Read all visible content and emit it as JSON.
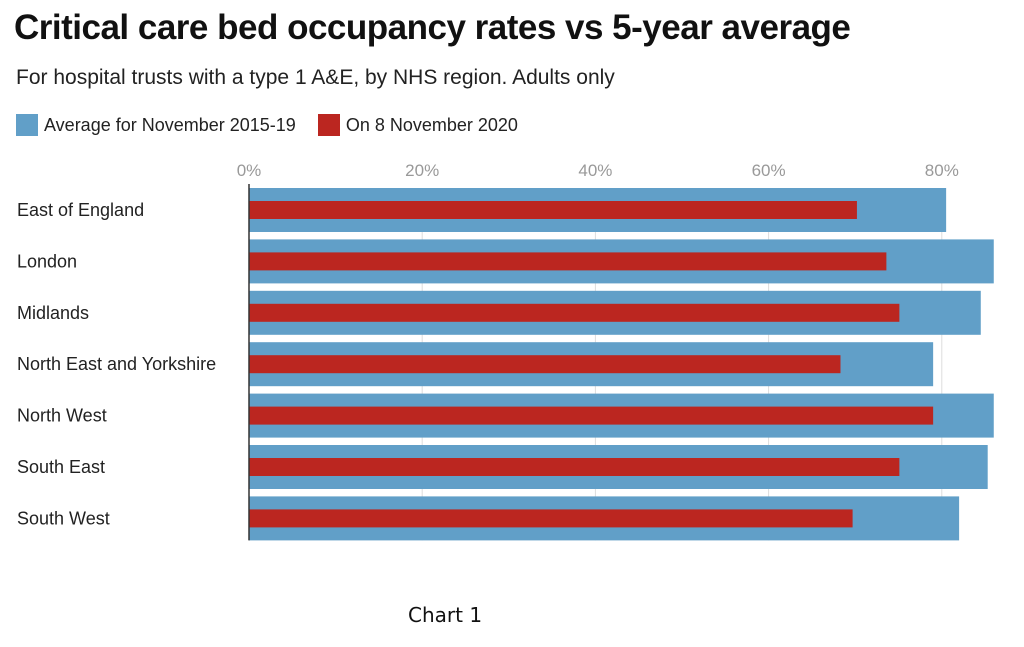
{
  "chart_data": {
    "type": "bar",
    "title": "Critical care bed occupancy rates vs 5-year average",
    "subtitle": "For hospital trusts with a type 1 A&E, by NHS region. Adults only",
    "categories": [
      "East of England",
      "London",
      "Midlands",
      "North East and Yorkshire",
      "North West",
      "South East",
      "South West"
    ],
    "series": [
      {
        "name": "Average for November 2015-19",
        "color": "#619fc8",
        "values": [
          80.5,
          86.0,
          84.5,
          79.0,
          86.0,
          85.3,
          82.0
        ]
      },
      {
        "name": "On 8 November 2020",
        "color": "#bb2620",
        "values": [
          70.2,
          73.6,
          75.1,
          68.3,
          79.0,
          75.1,
          69.7
        ]
      }
    ],
    "xlim": [
      0,
      86
    ],
    "xticks": [
      0,
      20,
      40,
      60,
      80
    ],
    "xtick_labels": [
      "0%",
      "20%",
      "40%",
      "60%",
      "80%"
    ],
    "grid": true,
    "legend_position": "top-left"
  },
  "caption": "Chart 1"
}
